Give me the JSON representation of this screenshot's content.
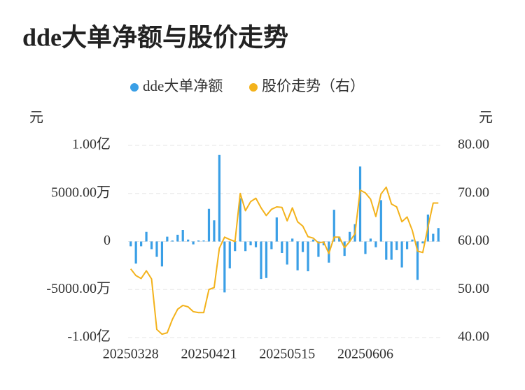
{
  "chart_data": {
    "type": "bar",
    "title": "dde大单净额与股价走势",
    "categories": [
      "20250328",
      null,
      null,
      null,
      null,
      null,
      null,
      null,
      null,
      null,
      null,
      null,
      null,
      null,
      null,
      "20250421",
      null,
      null,
      null,
      null,
      null,
      null,
      null,
      null,
      null,
      null,
      null,
      null,
      null,
      null,
      "20250515",
      null,
      null,
      null,
      null,
      null,
      null,
      null,
      null,
      null,
      null,
      null,
      null,
      null,
      null,
      "20250606",
      null,
      null,
      null,
      null,
      null,
      null,
      null,
      null,
      null,
      null,
      null,
      null,
      null,
      null
    ],
    "series": [
      {
        "name": "dde大单净额",
        "type": "bar",
        "color": "#3a9fe6",
        "values": [
          -500,
          -2300,
          -500,
          1000,
          -800,
          -1600,
          -2600,
          500,
          100,
          700,
          1200,
          200,
          -300,
          100,
          100,
          3400,
          2200,
          9000,
          -5300,
          -2800,
          -1000,
          4500,
          -1000,
          -400,
          -600,
          -3900,
          -3800,
          -800,
          2500,
          -1200,
          -2400,
          300,
          -3000,
          -1100,
          -3100,
          200,
          -1600,
          -400,
          -2200,
          3300,
          500,
          -1500,
          1000,
          1800,
          7800,
          -1300,
          300,
          -600,
          4300,
          -1900,
          -1900,
          -900,
          -2700,
          -800,
          200,
          -4000,
          -200,
          2800,
          800,
          1400
        ]
      },
      {
        "name": "股价走势（右）",
        "type": "line",
        "axis": "y2",
        "color": "#f3b21b",
        "values": [
          54.3,
          52.9,
          52.3,
          53.9,
          52.2,
          41.7,
          40.7,
          41.0,
          43.8,
          45.9,
          46.7,
          46.4,
          45.4,
          45.2,
          45.2,
          50.0,
          50.4,
          58.6,
          60.9,
          60.4,
          60.0,
          70.0,
          66.4,
          68.3,
          69.0,
          67.0,
          65.4,
          66.7,
          67.2,
          67.1,
          64.3,
          67.0,
          64.1,
          63.2,
          61.0,
          60.7,
          59.7,
          59.9,
          57.5,
          60.9,
          60.9,
          58.7,
          60.0,
          61.6,
          70.7,
          70.1,
          68.8,
          65.2,
          69.9,
          71.3,
          67.8,
          67.2,
          64.1,
          65.1,
          62.3,
          58.0,
          57.7,
          63.0,
          68.0,
          68.0
        ]
      }
    ],
    "ylabel": "元",
    "y2label": "元",
    "ylim": [
      -10000,
      10000
    ],
    "yticks": [
      {
        "value": -10000,
        "label": "-1.00亿"
      },
      {
        "value": -5000,
        "label": "-5000.00万"
      },
      0,
      {
        "value": 5000,
        "label": "5000.00万"
      },
      {
        "value": 10000,
        "label": "1.00亿"
      }
    ],
    "y2lim": [
      40,
      80
    ],
    "y2ticks": [
      {
        "value": 40,
        "label": "40.00"
      },
      {
        "value": 50,
        "label": "50.00"
      },
      {
        "value": 60,
        "label": "60.00"
      },
      {
        "value": 70,
        "label": "70.00"
      },
      {
        "value": 80,
        "label": "80.00"
      }
    ],
    "grid": true,
    "legend": "top"
  }
}
